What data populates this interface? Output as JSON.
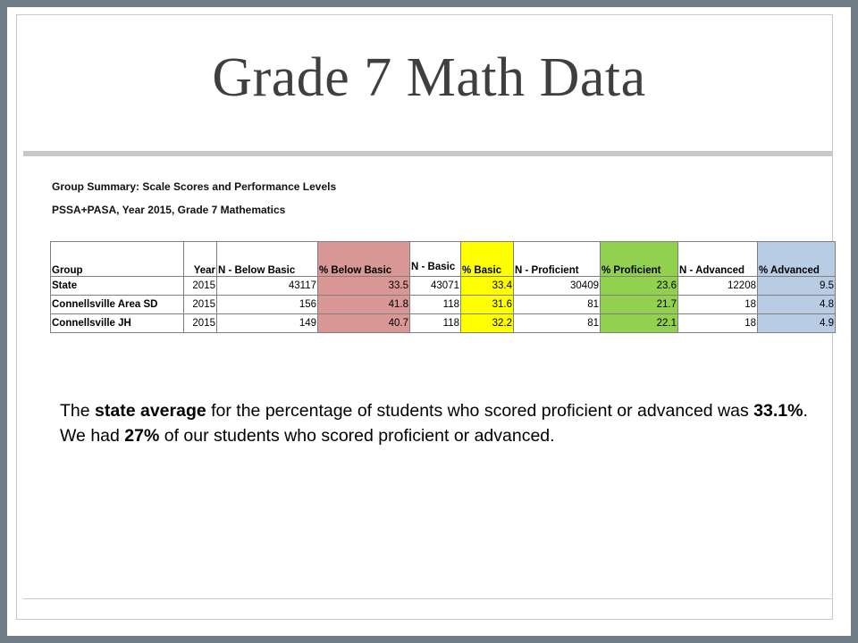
{
  "slide": {
    "title": "Grade 7 Math Data"
  },
  "summary": {
    "line1": "Group Summary: Scale Scores and Performance Levels",
    "line2": "PSSA+PASA, Year 2015, Grade 7 Mathematics"
  },
  "table": {
    "headers": [
      "Group",
      "Year",
      "N - Below Basic",
      "% Below Basic",
      "N - Basic",
      "% Basic",
      "N - Proficient",
      "% Proficient",
      "N - Advanced",
      "% Advanced"
    ],
    "rows": [
      [
        "State",
        "2015",
        "43117",
        "33.5",
        "43071",
        "33.4",
        "30409",
        "23.6",
        "12208",
        "9.5"
      ],
      [
        "Connellsville Area SD",
        "2015",
        "156",
        "41.8",
        "118",
        "31.6",
        "81",
        "21.7",
        "18",
        "4.8"
      ],
      [
        "Connellsville JH",
        "2015",
        "149",
        "40.7",
        "118",
        "32.2",
        "81",
        "22.1",
        "18",
        "4.9"
      ]
    ],
    "colors": {
      "below_basic": "#d99795",
      "basic": "#ffff00",
      "proficient": "#92d050",
      "advanced": "#b8cce4"
    }
  },
  "body": {
    "p1_a": "The ",
    "p1_b": "state average",
    "p1_c": " for the percentage of students who scored proficient or advanced was ",
    "p1_d": "33.1%",
    "p1_e": ".",
    "p2_a": "We had ",
    "p2_b": "27%",
    "p2_c": " of our students who scored proficient or advanced."
  }
}
